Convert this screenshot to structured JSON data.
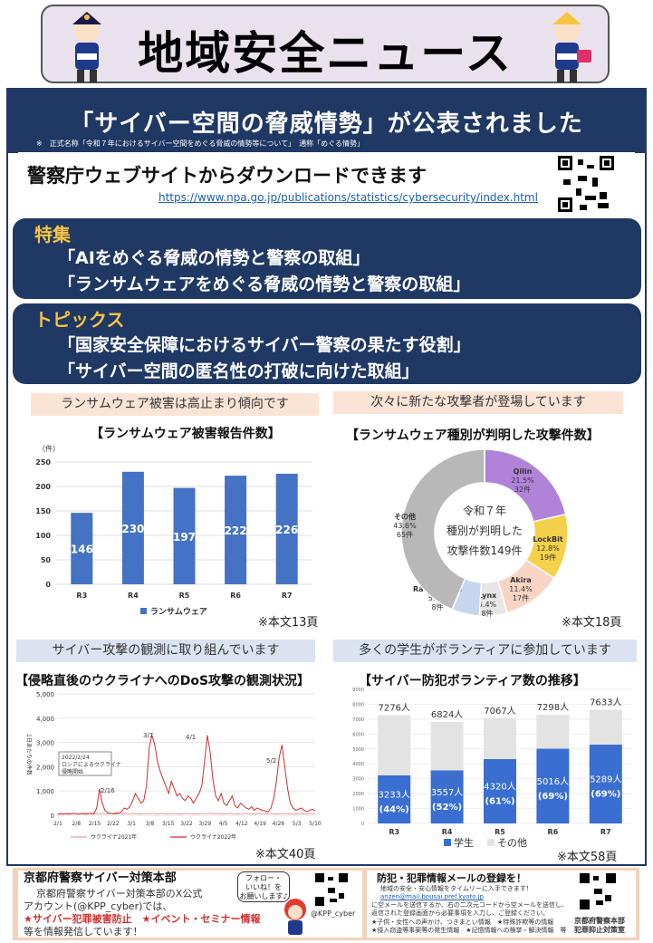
{
  "header": {
    "title": "地域安全ニュース"
  },
  "headline": "「サイバー空間の脅威情勢」が公表されました",
  "note": "※　正式名称「令和７年におけるサイバー空間をめぐる脅威の情勢等について」　通称「めぐる情勢」",
  "download": {
    "title": "警察庁ウェブサイトからダウンロードできます",
    "url": "https://www.npa.go.jp/publications/statistics/cybersecurity/index.html"
  },
  "feature": {
    "label": "特集",
    "items": [
      "「AIをめぐる脅威の情勢と警察の取組」",
      "「ランサムウェアをめぐる脅威の情勢と警察の取組」"
    ]
  },
  "topics": {
    "label": "トピックス",
    "items": [
      "「国家安全保障におけるサイバー警察の果たす役割」",
      "「サイバー空間の匿名性の打破に向けた取組」"
    ]
  },
  "sections": {
    "s1": {
      "banner": "ランサムウェア被害は高止まり傾向です",
      "title": "【ランサムウェア被害報告件数】",
      "ref": "※本文13頁"
    },
    "s2": {
      "banner": "次々に新たな攻撃者が登場しています",
      "title": "【ランサムウェア種別が判明した攻撃件数】",
      "ref": "※本文18頁"
    },
    "s3": {
      "banner": "サイバー攻撃の観測に取り組んでいます",
      "title": "【侵略直後のウクライナへのDoS攻撃の観測状況】",
      "ref": "※本文40頁"
    },
    "s4": {
      "banner": "多くの学生がボランティアに参加しています",
      "title": "【サイバー防犯ボランティア数の推移】",
      "ref": "※本文58頁"
    }
  },
  "chart_data": [
    {
      "type": "bar",
      "title": "【ランサムウェア被害報告件数】",
      "ylabel": "（件）",
      "categories": [
        "R3",
        "R4",
        "R5",
        "R6",
        "R7"
      ],
      "series": [
        {
          "name": "ランサムウェア",
          "values": [
            146,
            230,
            197,
            222,
            226
          ]
        }
      ],
      "ylim": [
        0,
        250
      ],
      "yticks": [
        0,
        50,
        100,
        150,
        200,
        250
      ],
      "color": "#4472c4",
      "legend": "bottom"
    },
    {
      "type": "pie",
      "title": "【ランサムウェア種別が判明した攻撃件数】",
      "center_text": [
        "令和７年",
        "種別が判明した",
        "攻撃件数149件"
      ],
      "slices": [
        {
          "name": "Qilin",
          "percent": "21.5%",
          "count": "32件",
          "value": 32,
          "color": "#b083d8"
        },
        {
          "name": "LockBit",
          "percent": "12.8%",
          "count": "19件",
          "value": 19,
          "color": "#f5d04a"
        },
        {
          "name": "Akira",
          "percent": "11.4%",
          "count": "17件",
          "value": 17,
          "color": "#f7d4c3"
        },
        {
          "name": "Lynx",
          "percent": "5.4%",
          "count": "8件",
          "value": 8,
          "color": "#e6e6e6"
        },
        {
          "name": "RansomHub",
          "percent": "5.4%",
          "count": "8件",
          "value": 8,
          "color": "#c5d6ee"
        },
        {
          "name": "その他",
          "percent": "43.6%",
          "count": "65件",
          "value": 65,
          "color": "#b8b8b8"
        }
      ]
    },
    {
      "type": "line",
      "title": "【侵略直後のウクライナへのDoS攻撃の観測状況】",
      "ylabel": "1日あたりの件数",
      "ylim": [
        0,
        5000
      ],
      "yticks": [
        "0",
        "1,000",
        "2,000",
        "3,000",
        "4,000",
        "5,000"
      ],
      "x_ticks": [
        "2/1",
        "2/8",
        "2/15",
        "2/22",
        "3/1",
        "3/8",
        "3/15",
        "3/22",
        "3/29",
        "4/5",
        "4/12",
        "4/19",
        "4/26",
        "5/3",
        "5/10"
      ],
      "annotations": [
        "2/16",
        "3/7",
        "4/1",
        "5/2"
      ],
      "callout": [
        "2022/2/24",
        "ロシアによるウクライナ",
        "侵略開始"
      ],
      "series": [
        {
          "name": "ウクライナ2021年",
          "color": "#e8a0a0",
          "values": [
            60,
            80,
            50,
            70,
            90,
            60,
            80,
            70,
            50,
            60,
            90,
            80,
            70,
            60,
            50,
            80,
            60,
            70,
            90,
            60,
            70,
            80,
            60,
            50,
            70,
            80,
            60,
            90,
            70,
            60,
            80,
            70,
            60,
            50,
            70,
            80,
            60,
            70,
            90,
            60,
            50,
            70,
            80,
            60,
            70,
            60,
            80,
            70,
            60,
            50,
            60,
            70,
            80,
            60,
            70,
            60,
            50,
            70,
            80,
            60,
            70,
            90,
            60,
            70,
            80,
            60,
            50,
            70,
            60,
            80,
            70,
            60,
            50,
            60,
            70,
            80,
            60,
            70,
            60,
            50,
            70,
            80,
            60,
            70,
            60,
            80,
            70,
            60,
            50,
            60,
            70,
            80,
            60,
            70,
            60,
            50,
            70,
            80,
            60,
            70,
            60,
            80,
            70,
            60
          ]
        },
        {
          "name": "ウクライナ2022年",
          "color": "#d32f2f",
          "values": [
            40,
            60,
            50,
            70,
            50,
            60,
            80,
            50,
            60,
            70,
            50,
            60,
            80,
            60,
            300,
            1100,
            500,
            200,
            100,
            80,
            60,
            100,
            80,
            150,
            300,
            250,
            350,
            600,
            900,
            700,
            500,
            600,
            1200,
            2800,
            3300,
            2900,
            2200,
            1800,
            1500,
            1200,
            900,
            1400,
            1100,
            800,
            900,
            700,
            600,
            800,
            700,
            500,
            700,
            900,
            1200,
            2200,
            3300,
            2600,
            1500,
            800,
            600,
            900,
            500,
            400,
            600,
            800,
            400,
            300,
            500,
            400,
            300,
            250,
            350,
            200,
            300,
            250,
            200,
            180,
            150,
            300,
            700,
            1400,
            2400,
            2900,
            2000,
            1100,
            500,
            300,
            200,
            250,
            300,
            200,
            150,
            200,
            250,
            180
          ]
        }
      ]
    },
    {
      "type": "bar",
      "title": "【サイバー防犯ボランティア数の推移】",
      "categories": [
        "R3",
        "R4",
        "R5",
        "R6",
        "R7"
      ],
      "ylim": [
        0,
        9000
      ],
      "yticks": [
        0,
        1000,
        2000,
        3000,
        4000,
        5000,
        6000,
        7000,
        8000,
        9000
      ],
      "totals": [
        "7276人",
        "6824人",
        "7067人",
        "7298人",
        "7633人"
      ],
      "series": [
        {
          "name": "学生",
          "values": [
            3233,
            3557,
            4320,
            5016,
            5289
          ],
          "labels": [
            "3233人",
            "3557人",
            "4320人",
            "5016人",
            "5289人"
          ],
          "pct": [
            "(44%)",
            "(52%)",
            "(61%)",
            "(69%)",
            "(69%)"
          ],
          "color": "#3a6ed0"
        },
        {
          "name": "その他",
          "values": [
            4043,
            3267,
            2747,
            2282,
            2344
          ],
          "color": "#e3e3e3"
        }
      ],
      "legend": "bottom"
    }
  ],
  "footer": {
    "left_title": "京都府警察サイバー対策本部",
    "left_lines": [
      "京都府警察サイバー対策本部のX公式",
      "アカウント(@KPP_cyber)では、"
    ],
    "left_red": "★サイバー犯罪被害防止　★イベント・セミナー情報",
    "left_last": "等を情報発信しています！",
    "bubble": [
      "フォロー・",
      "いいね！を",
      "お願いします♪"
    ],
    "x_handle": "@KPP_cyber",
    "right_title": "防犯・犯罪情報メールの登録を！",
    "right_lines": [
      "地域の安全・安心情報をタイムリーに入手できます！",
      "anzen@mail.bousai.pref.kyoto.jp",
      "に空メールを送信するか、右の二次元コードから空メールを送信し、",
      "返信された登録画面から必要事項を入力し、ご登録ください。",
      "★子供・女性への声かけ、つきまとい情報　★特殊詐欺等の情報",
      "★侵入窃盗等事案等の発生情報　★記憶情報への検挙・解決情報　等"
    ],
    "right_label": [
      "京都府警察本部",
      "犯罪抑止対策室"
    ]
  }
}
